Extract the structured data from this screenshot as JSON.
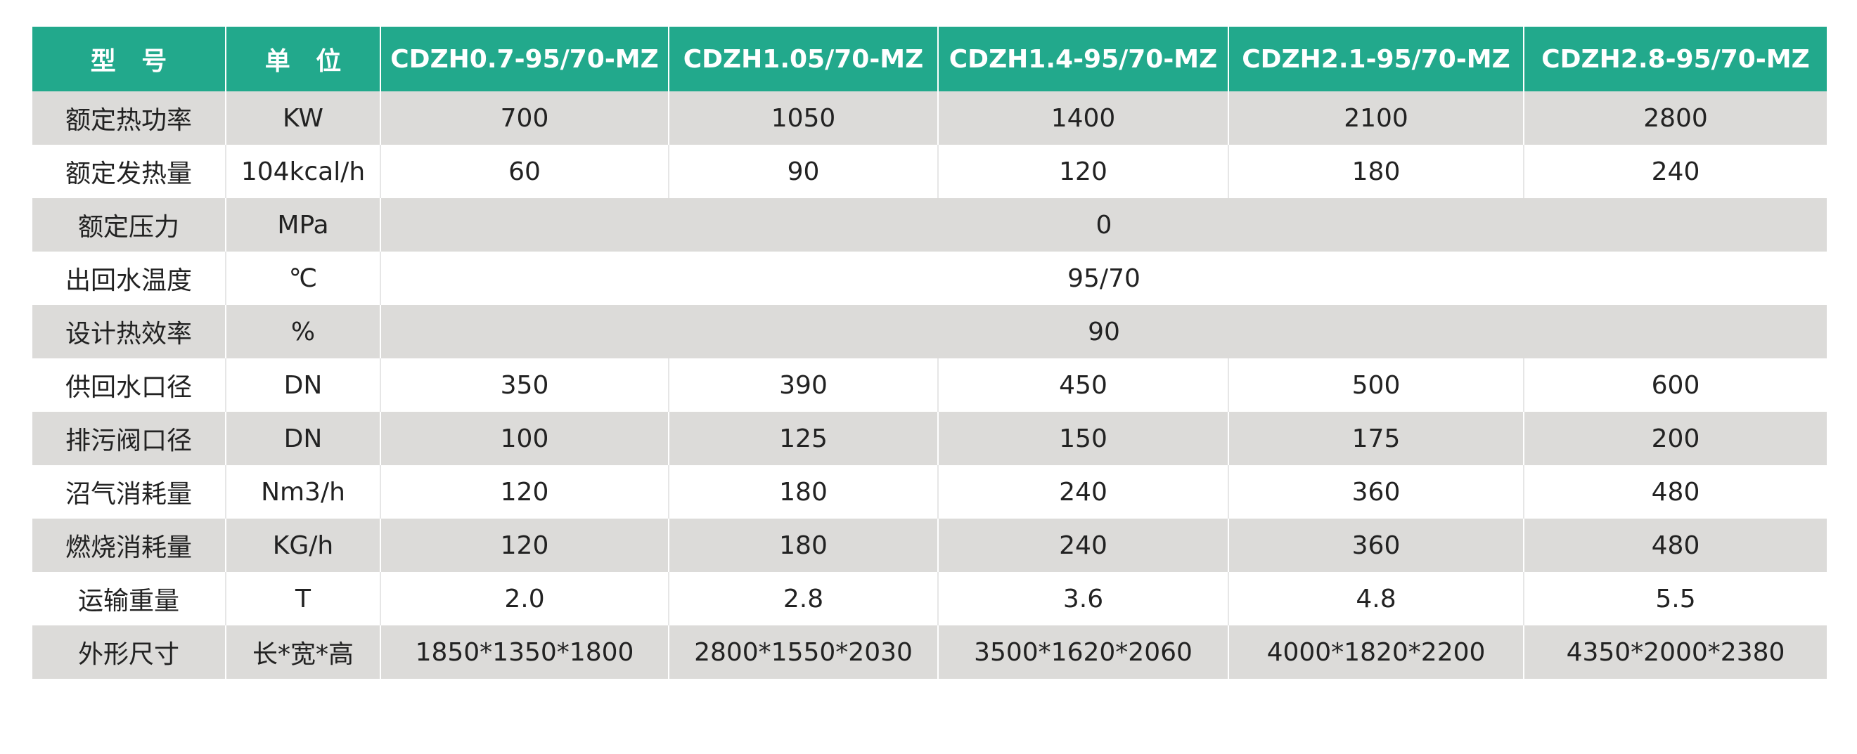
{
  "table": {
    "headers": [
      "型 号",
      "单 位",
      "CDZH0.7-95/70-MZ",
      "CDZH1.05/70-MZ",
      "CDZH1.4-95/70-MZ",
      "CDZH2.1-95/70-MZ",
      "CDZH2.8-95/70-MZ"
    ],
    "rows": [
      {
        "label": "额定热功率",
        "unit": "KW",
        "values": [
          "700",
          "1050",
          "1400",
          "2100",
          "2800"
        ]
      },
      {
        "label": "额定发热量",
        "unit": "104kcal/h",
        "values": [
          "60",
          "90",
          "120",
          "180",
          "240"
        ]
      },
      {
        "label": "额定压力",
        "unit": "MPa",
        "merged": "0"
      },
      {
        "label": "出回水温度",
        "unit": "℃",
        "merged": "95/70"
      },
      {
        "label": "设计热效率",
        "unit": "%",
        "merged": "90"
      },
      {
        "label": "供回水口径",
        "unit": "DN",
        "values": [
          "350",
          "390",
          "450",
          "500",
          "600"
        ]
      },
      {
        "label": "排污阀口径",
        "unit": "DN",
        "values": [
          "100",
          "125",
          "150",
          "175",
          "200"
        ]
      },
      {
        "label": "沼气消耗量",
        "unit": "Nm3/h",
        "values": [
          "120",
          "180",
          "240",
          "360",
          "480"
        ]
      },
      {
        "label": "燃烧消耗量",
        "unit": "KG/h",
        "values": [
          "120",
          "180",
          "240",
          "360",
          "480"
        ]
      },
      {
        "label": "运输重量",
        "unit": "T",
        "values": [
          "2.0",
          "2.8",
          "3.6",
          "4.8",
          "5.5"
        ]
      },
      {
        "label": "外形尺寸",
        "unit": "长*宽*高",
        "values": [
          "1850*1350*1800",
          "2800*1550*2030",
          "3500*1620*2060",
          "4000*1820*2200",
          "4350*2000*2380"
        ]
      }
    ]
  },
  "colors": {
    "header_background": "#22a98c",
    "header_text": "#ffffff",
    "stripe_row_background": "#dcdbd9",
    "plain_row_background": "#ffffff",
    "cell_text": "#222222"
  }
}
